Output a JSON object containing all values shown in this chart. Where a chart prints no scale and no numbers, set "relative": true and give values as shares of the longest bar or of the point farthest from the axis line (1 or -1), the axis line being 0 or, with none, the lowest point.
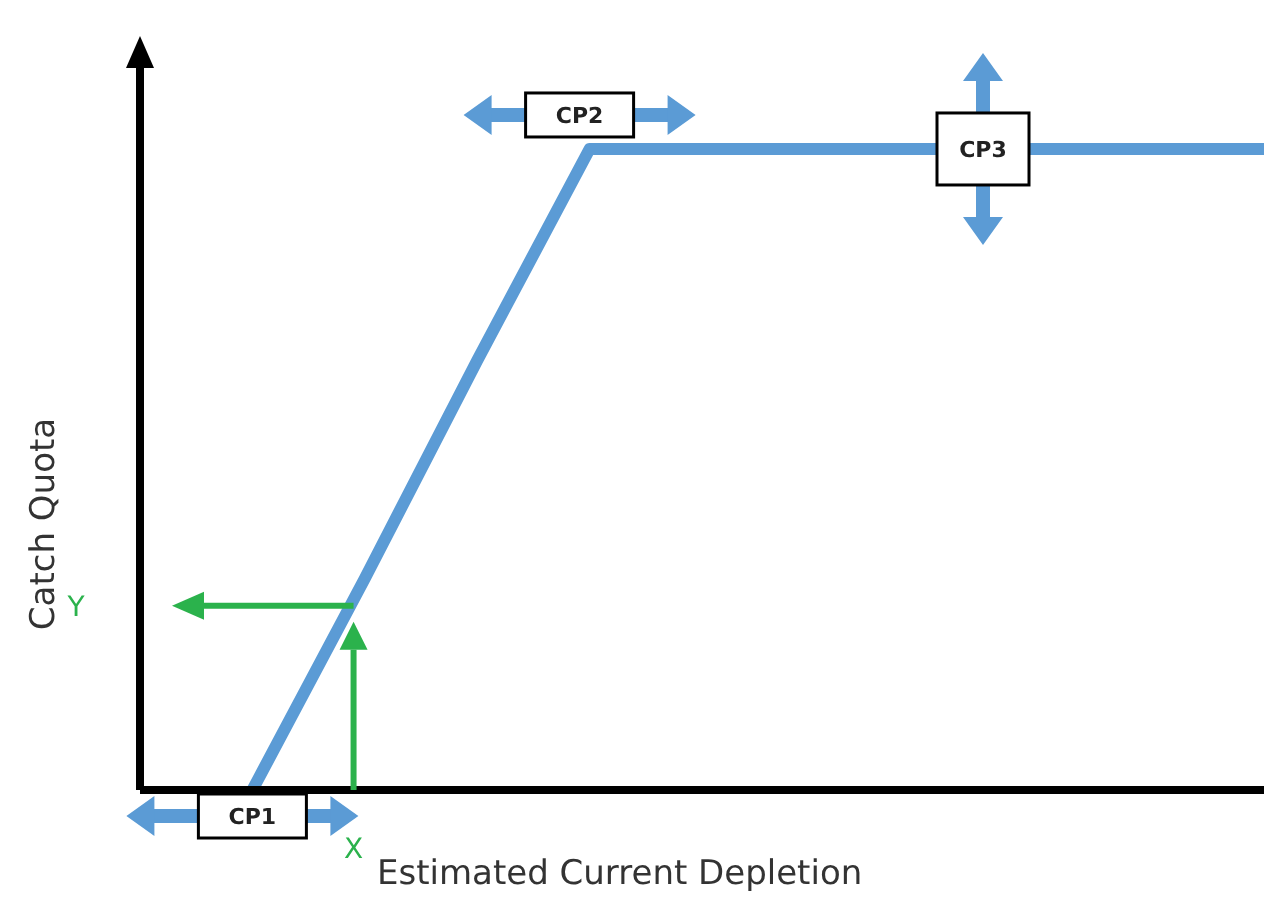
{
  "chart_data": {
    "type": "line",
    "relative": true,
    "xlabel": "Estimated Current Depletion",
    "ylabel": "Catch Quota",
    "categories": [
      null,
      null,
      null,
      null,
      null,
      null,
      null,
      null,
      null,
      null,
      null
    ],
    "series": [
      {
        "color": "#5b9bd5",
        "values": [
          null,
          0,
          0.33,
          0.67,
          1,
          1,
          1,
          1,
          1,
          1,
          1
        ]
      }
    ],
    "annotations": [
      "CP1",
      "CP2",
      "CP3",
      "X",
      "Y"
    ],
    "legend": false,
    "grid": false,
    "marker": "none",
    "line_style": "solid"
  }
}
